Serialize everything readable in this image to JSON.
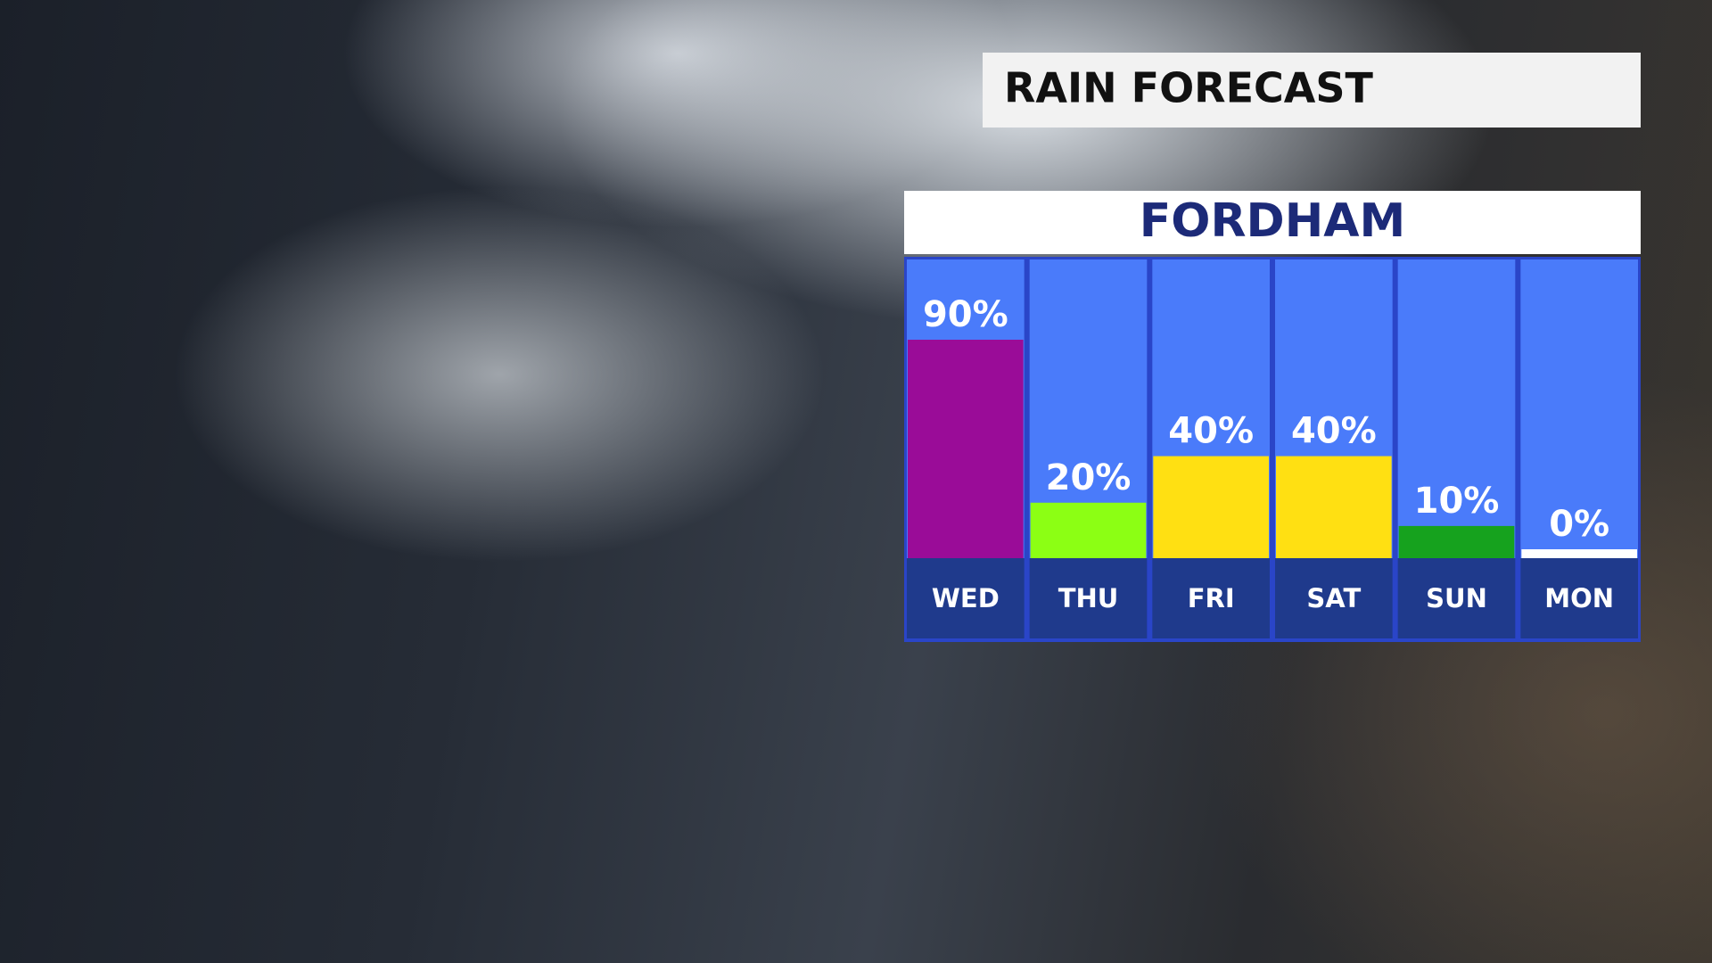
{
  "chart_data": {
    "type": "bar",
    "title": "RAIN FORECAST",
    "subtitle": "FORDHAM",
    "categories": [
      "WED",
      "THU",
      "FRI",
      "SAT",
      "SUN",
      "MON"
    ],
    "values": [
      90,
      20,
      40,
      40,
      10,
      0
    ],
    "value_labels": [
      "90%",
      "20%",
      "40%",
      "40%",
      "10%",
      "0%"
    ],
    "colors": [
      "#9a0c98",
      "#8cff14",
      "#ffe012",
      "#ffe012",
      "#16a21e",
      "#ffffff"
    ]
  }
}
